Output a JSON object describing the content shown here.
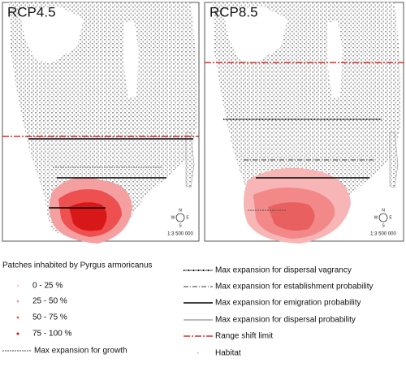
{
  "panels": [
    {
      "title": "RCP4.5",
      "scale": "1:3 500 000"
    },
    {
      "title": "RCP8.5",
      "scale": "1:3 500 000"
    }
  ],
  "compass": {
    "n": "N",
    "s": "S",
    "e": "E",
    "w": "W"
  },
  "legend": {
    "patches": {
      "title": "Patches inhabited by Pyrgus armoricanus",
      "items": [
        "0 - 25 %",
        "25 - 50 %",
        "50 - 75 %",
        "75 - 100 %"
      ]
    },
    "growth": "Max expansion for growth",
    "lines": [
      "Max expansion for dispersal vagrancy",
      "Max expansion for establishment probability",
      "Max expansion for emigration probability",
      "Max expansion for dispersal probability",
      "Range shift limit",
      "Habitat"
    ]
  }
}
